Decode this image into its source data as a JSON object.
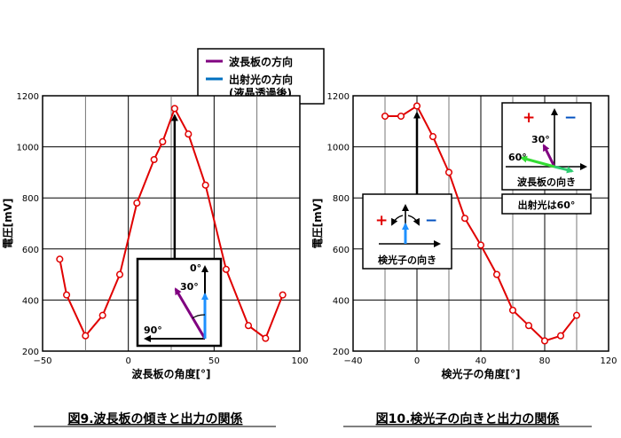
{
  "legend": {
    "items": [
      {
        "label": "波長板の方向",
        "color": "#800080"
      },
      {
        "label": "出射光の方向",
        "color": "#0070c0"
      }
    ],
    "note": "(液晶透過後)"
  },
  "chart_data": [
    {
      "type": "line",
      "caption": "図9.波長板の傾きと出力の関係",
      "xlabel": "波長板の角度[°]",
      "ylabel": "電圧[mV]",
      "xlim": [
        -50,
        100
      ],
      "ylim": [
        200,
        1200
      ],
      "xticks": [
        -50,
        0,
        50,
        100
      ],
      "yticks": [
        200,
        400,
        600,
        800,
        1000,
        1200
      ],
      "grid": true,
      "line_color": "#e00000",
      "series": [
        {
          "x": [
            -40,
            -36,
            -25,
            -15,
            -5,
            5,
            15,
            20,
            27,
            35,
            45,
            57,
            70,
            80,
            90
          ],
          "y": [
            560,
            420,
            260,
            340,
            500,
            780,
            950,
            1020,
            1150,
            1050,
            850,
            520,
            300,
            250,
            420
          ]
        }
      ],
      "arrow_x": 27,
      "inset": {
        "labels": [
          "0°",
          "30°",
          "90°"
        ]
      }
    },
    {
      "type": "line",
      "caption": "図10.検光子の向きと出力の関係",
      "xlabel": "検光子の角度[°]",
      "ylabel": "電圧[mV]",
      "xlim": [
        -40,
        120
      ],
      "ylim": [
        200,
        1200
      ],
      "xticks": [
        -40,
        0,
        40,
        80,
        120
      ],
      "yticks": [
        200,
        400,
        600,
        800,
        1000,
        1200
      ],
      "grid": true,
      "line_color": "#e00000",
      "series": [
        {
          "x": [
            -20,
            -10,
            0,
            10,
            20,
            30,
            40,
            50,
            60,
            70,
            80,
            90,
            100
          ],
          "y": [
            1120,
            1120,
            1160,
            1040,
            900,
            720,
            615,
            500,
            360,
            300,
            240,
            260,
            340
          ]
        }
      ],
      "arrow_x": 0,
      "inset_left": {
        "plus": "+",
        "minus": "−",
        "label": "検光子の向き"
      },
      "inset_right": {
        "plus": "+",
        "minus": "−",
        "labels": [
          "30°",
          "60°"
        ],
        "caption": "波長板の向き"
      },
      "note": "出射光は60°"
    }
  ]
}
